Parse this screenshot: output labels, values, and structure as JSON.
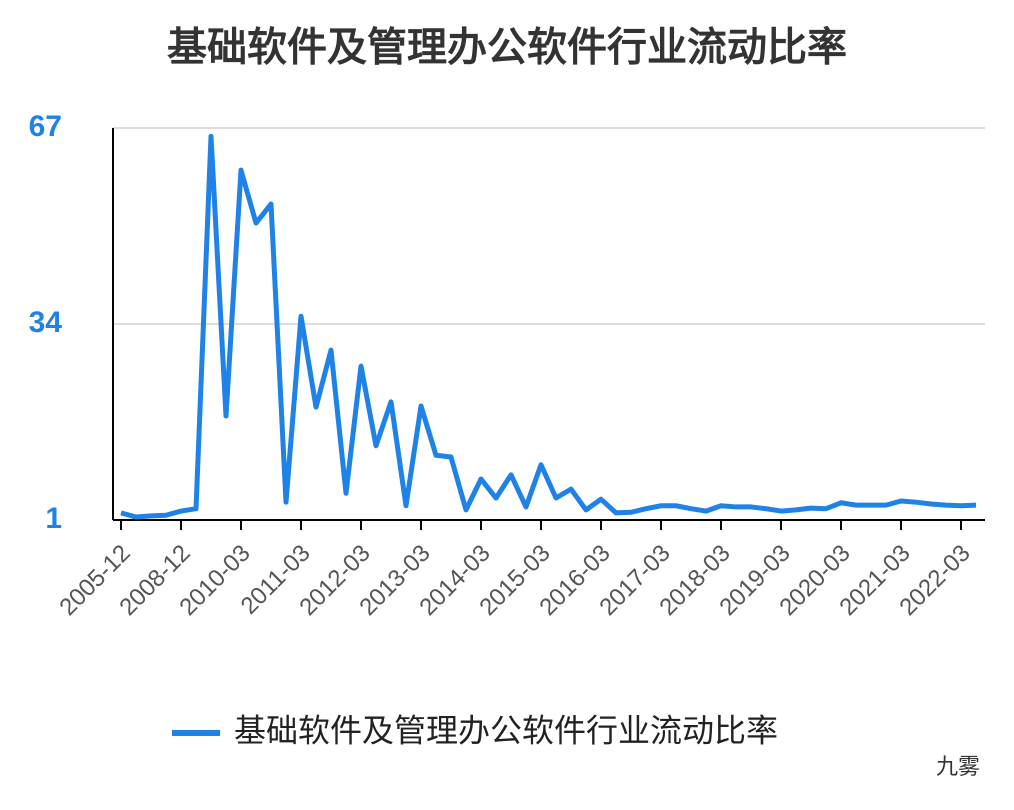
{
  "chart_data": {
    "type": "line",
    "title": "基础软件及管理办公软件行业流动比率",
    "categories": [
      "2005-12",
      null,
      null,
      null,
      "2008-12",
      null,
      null,
      null,
      "2010-03",
      null,
      null,
      null,
      "2011-03",
      null,
      null,
      null,
      "2012-03",
      null,
      null,
      null,
      "2013-03",
      null,
      null,
      null,
      "2014-03",
      null,
      null,
      null,
      "2015-03",
      null,
      null,
      null,
      "2016-03",
      null,
      null,
      null,
      "2017-03",
      null,
      null,
      null,
      "2018-03",
      null,
      null,
      null,
      "2019-03",
      null,
      null,
      null,
      "2020-03",
      null,
      null,
      null,
      "2021-03",
      null,
      null,
      null,
      "2022-03",
      null
    ],
    "series": [
      {
        "name": "基础软件及管理办公软件行业流动比率",
        "color": "#1f82e6",
        "values": [
          2.2,
          1.5,
          1.7,
          1.8,
          2.5,
          2.9,
          65.6,
          18.5,
          59.9,
          51.0,
          54.2,
          4.0,
          35.3,
          20.0,
          29.6,
          5.5,
          26.9,
          13.5,
          20.9,
          3.4,
          20.2,
          11.9,
          11.6,
          2.7,
          7.9,
          4.7,
          8.6,
          3.2,
          10.3,
          4.7,
          6.2,
          2.7,
          4.5,
          2.2,
          2.3,
          2.9,
          3.4,
          3.4,
          2.9,
          2.5,
          3.4,
          3.2,
          3.2,
          2.9,
          2.5,
          2.7,
          3.0,
          2.9,
          3.9,
          3.5,
          3.5,
          3.5,
          4.2,
          4.0,
          3.7,
          3.5,
          3.4,
          3.5
        ]
      }
    ],
    "ylim": [
      1,
      67
    ],
    "yticks": [
      1,
      34,
      67
    ],
    "grid": true,
    "legend": "bottom"
  },
  "watermark": "九雾"
}
